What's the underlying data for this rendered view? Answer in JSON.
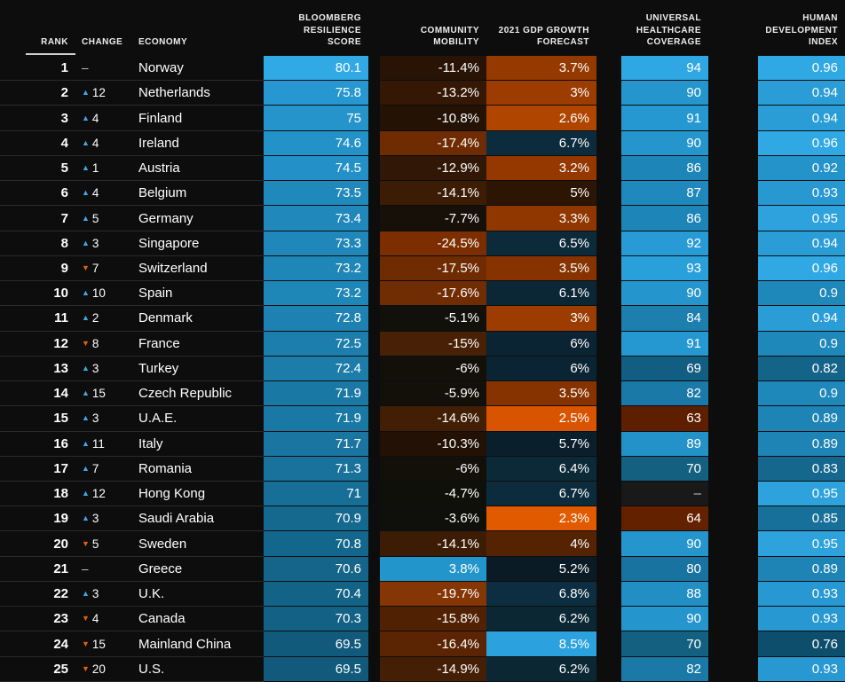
{
  "colors": {
    "background": "#0d0d0d",
    "text": "#ffffff",
    "muted": "#c9c9c9",
    "up": "#3fa9e4",
    "down": "#e2600e",
    "separator": "#2a2a2a",
    "rank_rule": "#cfcfcf",
    "header_text": "#ededed"
  },
  "header": {
    "rank": "RANK",
    "change": "CHANGE",
    "economy": "ECONOMY",
    "score": "BLOOMBERG\nRESILIENCE\nSCORE",
    "mobility": "COMMUNITY\nMOBILITY",
    "gdp": "2021 GDP GROWTH\nFORECAST",
    "healthcare": "UNIVERSAL\nHEALTHCARE\nCOVERAGE",
    "hdi": "HUMAN\nDEVELOPMENT\nINDEX"
  },
  "chart_data": {
    "type": "table",
    "columns": [
      "Rank",
      "Change",
      "Economy",
      "Bloomberg Resilience Score",
      "Community Mobility",
      "2021 GDP Growth Forecast",
      "Universal Healthcare Coverage",
      "Human Development Index"
    ],
    "rows": [
      {
        "rank": "1",
        "change_dir": "same",
        "change": "–",
        "economy": "Norway",
        "score": "80.1",
        "mobility": "-11.4%",
        "gdp": "3.7%",
        "healthcare": "94",
        "hdi": "0.96",
        "bg": {
          "score": "#31a9e5",
          "mobility": "#281305",
          "gdp": "#943900",
          "healthcare": "#2fa7e3",
          "hdi": "#30a8e4"
        }
      },
      {
        "rank": "2",
        "change_dir": "up",
        "change": "12",
        "economy": "Netherlands",
        "score": "75.8",
        "mobility": "-13.2%",
        "gdp": "3%",
        "healthcare": "90",
        "hdi": "0.94",
        "bg": {
          "score": "#2697d0",
          "mobility": "#341805",
          "gdp": "#9c3c00",
          "healthcare": "#2495cd",
          "hdi": "#2a9dd7"
        }
      },
      {
        "rank": "3",
        "change_dir": "up",
        "change": "4",
        "economy": "Finland",
        "score": "75",
        "mobility": "-10.8%",
        "gdp": "2.6%",
        "healthcare": "91",
        "hdi": "0.94",
        "bg": {
          "score": "#2494cb",
          "mobility": "#241204",
          "gdp": "#b04500",
          "healthcare": "#2698d1",
          "hdi": "#2a9dd7"
        }
      },
      {
        "rank": "4",
        "change_dir": "up",
        "change": "4",
        "economy": "Ireland",
        "score": "74.6",
        "mobility": "-17.4%",
        "gdp": "6.7%",
        "healthcare": "90",
        "hdi": "0.96",
        "bg": {
          "score": "#2392c8",
          "mobility": "#6f2c03",
          "gdp": "#0c2c3d",
          "healthcare": "#2495cd",
          "hdi": "#30a8e4"
        }
      },
      {
        "rank": "5",
        "change_dir": "up",
        "change": "1",
        "economy": "Austria",
        "score": "74.5",
        "mobility": "-12.9%",
        "gdp": "3.2%",
        "healthcare": "86",
        "hdi": "0.92",
        "bg": {
          "score": "#2391c7",
          "mobility": "#311705",
          "gdp": "#943800",
          "healthcare": "#1e85b8",
          "hdi": "#2493ca"
        }
      },
      {
        "rank": "6",
        "change_dir": "up",
        "change": "4",
        "economy": "Belgium",
        "score": "73.5",
        "mobility": "-14.1%",
        "gdp": "5%",
        "healthcare": "87",
        "hdi": "0.93",
        "bg": {
          "score": "#2089bc",
          "mobility": "#3d1c05",
          "gdp": "#2d1503",
          "healthcare": "#1f88bc",
          "hdi": "#2798d1"
        }
      },
      {
        "rank": "7",
        "change_dir": "up",
        "change": "5",
        "economy": "Germany",
        "score": "73.4",
        "mobility": "-7.7%",
        "gdp": "3.3%",
        "healthcare": "86",
        "hdi": "0.95",
        "bg": {
          "score": "#2088bb",
          "mobility": "#171008",
          "gdp": "#903700",
          "healthcare": "#1e85b8",
          "hdi": "#2da2dd"
        }
      },
      {
        "rank": "8",
        "change_dir": "up",
        "change": "3",
        "economy": "Singapore",
        "score": "73.3",
        "mobility": "-24.5%",
        "gdp": "6.5%",
        "healthcare": "92",
        "hdi": "0.94",
        "bg": {
          "score": "#1f87b9",
          "mobility": "#7c2e00",
          "gdp": "#0c2a3a",
          "healthcare": "#289bd6",
          "hdi": "#2a9dd7"
        }
      },
      {
        "rank": "9",
        "change_dir": "down",
        "change": "7",
        "economy": "Switzerland",
        "score": "73.2",
        "mobility": "-17.5%",
        "gdp": "3.5%",
        "healthcare": "93",
        "hdi": "0.96",
        "bg": {
          "score": "#1f86b8",
          "mobility": "#6f2c03",
          "gdp": "#873300",
          "healthcare": "#2aa0db",
          "hdi": "#30a8e4"
        }
      },
      {
        "rank": "10",
        "change_dir": "up",
        "change": "10",
        "economy": "Spain",
        "score": "73.2",
        "mobility": "-17.6%",
        "gdp": "6.1%",
        "healthcare": "90",
        "hdi": "0.9",
        "bg": {
          "score": "#1f86b8",
          "mobility": "#702c03",
          "gdp": "#0b2635",
          "healthcare": "#2495cd",
          "hdi": "#1f88bb"
        }
      },
      {
        "rank": "11",
        "change_dir": "up",
        "change": "2",
        "economy": "Denmark",
        "score": "72.8",
        "mobility": "-5.1%",
        "gdp": "3%",
        "healthcare": "84",
        "hdi": "0.94",
        "bg": {
          "score": "#1d81b1",
          "mobility": "#11100a",
          "gdp": "#9c3c00",
          "healthcare": "#1c7fae",
          "hdi": "#2a9dd7"
        }
      },
      {
        "rank": "12",
        "change_dir": "down",
        "change": "8",
        "economy": "France",
        "score": "72.5",
        "mobility": "-15%",
        "gdp": "6%",
        "healthcare": "91",
        "hdi": "0.9",
        "bg": {
          "score": "#1c7eac",
          "mobility": "#482005",
          "gdp": "#0b2433",
          "healthcare": "#2698d1",
          "hdi": "#1f88bb"
        }
      },
      {
        "rank": "13",
        "change_dir": "up",
        "change": "3",
        "economy": "Turkey",
        "score": "72.4",
        "mobility": "-6%",
        "gdp": "6%",
        "healthcare": "69",
        "hdi": "0.82",
        "bg": {
          "score": "#1c7dab",
          "mobility": "#131009",
          "gdp": "#0b2433",
          "healthcare": "#125e83",
          "hdi": "#146389"
        }
      },
      {
        "rank": "14",
        "change_dir": "up",
        "change": "15",
        "economy": "Czech Republic",
        "score": "71.9",
        "mobility": "-5.9%",
        "gdp": "3.5%",
        "healthcare": "82",
        "hdi": "0.9",
        "bg": {
          "score": "#1a78a4",
          "mobility": "#131009",
          "gdp": "#873300",
          "healthcare": "#1a79a7",
          "hdi": "#1f88bb"
        }
      },
      {
        "rank": "15",
        "change_dir": "up",
        "change": "3",
        "economy": "U.A.E.",
        "score": "71.9",
        "mobility": "-14.6%",
        "gdp": "2.5%",
        "healthcare": "63",
        "hdi": "0.89",
        "bg": {
          "score": "#1a78a4",
          "mobility": "#421e05",
          "gdp": "#d85400",
          "healthcare": "#5e1f00",
          "hdi": "#1d84b5"
        }
      },
      {
        "rank": "16",
        "change_dir": "up",
        "change": "11",
        "economy": "Italy",
        "score": "71.7",
        "mobility": "-10.3%",
        "gdp": "5.7%",
        "healthcare": "89",
        "hdi": "0.89",
        "bg": {
          "score": "#1a76a1",
          "mobility": "#221104",
          "gdp": "#0a1f2c",
          "healthcare": "#2392c8",
          "hdi": "#1d84b5"
        }
      },
      {
        "rank": "17",
        "change_dir": "up",
        "change": "7",
        "economy": "Romania",
        "score": "71.3",
        "mobility": "-6%",
        "gdp": "6.4%",
        "healthcare": "70",
        "hdi": "0.83",
        "bg": {
          "score": "#18729b",
          "mobility": "#131009",
          "gdp": "#0c2938",
          "healthcare": "#136080",
          "hdi": "#15678d"
        }
      },
      {
        "rank": "18",
        "change_dir": "up",
        "change": "12",
        "economy": "Hong Kong",
        "score": "71",
        "mobility": "-4.7%",
        "gdp": "6.7%",
        "healthcare": "–",
        "hdi": "0.95",
        "bg": {
          "score": "#176f97",
          "mobility": "#10100b",
          "gdp": "#0c2c3d",
          "healthcare": "#191919",
          "hdi": "#2da2dd"
        }
      },
      {
        "rank": "19",
        "change_dir": "up",
        "change": "3",
        "economy": "Saudi Arabia",
        "score": "70.9",
        "mobility": "-3.6%",
        "gdp": "2.3%",
        "healthcare": "64",
        "hdi": "0.85",
        "bg": {
          "score": "#15688e",
          "mobility": "#0f100c",
          "gdp": "#e25a00",
          "healthcare": "#642100",
          "hdi": "#17709a"
        }
      },
      {
        "rank": "20",
        "change_dir": "down",
        "change": "5",
        "economy": "Sweden",
        "score": "70.8",
        "mobility": "-14.1%",
        "gdp": "4%",
        "healthcare": "90",
        "hdi": "0.95",
        "bg": {
          "score": "#14678c",
          "mobility": "#3d1c05",
          "gdp": "#552202",
          "healthcare": "#2495cd",
          "hdi": "#2da2dd"
        }
      },
      {
        "rank": "21",
        "change_dir": "same",
        "change": "–",
        "economy": "Greece",
        "score": "70.6",
        "mobility": "3.8%",
        "gdp": "5.2%",
        "healthcare": "80",
        "hdi": "0.89",
        "bg": {
          "score": "#146589",
          "mobility": "#2295cb",
          "gdp": "#0a1b26",
          "healthcare": "#1873a0",
          "hdi": "#1d84b5"
        }
      },
      {
        "rank": "22",
        "change_dir": "up",
        "change": "3",
        "economy": "U.K.",
        "score": "70.4",
        "mobility": "-19.7%",
        "gdp": "6.8%",
        "healthcare": "88",
        "hdi": "0.93",
        "bg": {
          "score": "#136386",
          "mobility": "#853605",
          "gdp": "#0d2e40",
          "healthcare": "#218fc4",
          "hdi": "#2798d1"
        }
      },
      {
        "rank": "23",
        "change_dir": "down",
        "change": "4",
        "economy": "Canada",
        "score": "70.3",
        "mobility": "-15.8%",
        "gdp": "6.2%",
        "healthcare": "90",
        "hdi": "0.93",
        "bg": {
          "score": "#136285",
          "mobility": "#512103",
          "gdp": "#0b2734",
          "healthcare": "#2495cd",
          "hdi": "#2798d1"
        }
      },
      {
        "rank": "24",
        "change_dir": "down",
        "change": "15",
        "economy": "Mainland China",
        "score": "69.5",
        "mobility": "-16.4%",
        "gdp": "8.5%",
        "healthcare": "70",
        "hdi": "0.76",
        "bg": {
          "score": "#115a7c",
          "mobility": "#5b2503",
          "gdp": "#2ba2de",
          "healthcare": "#136080",
          "hdi": "#0e4e6d"
        }
      },
      {
        "rank": "25",
        "change_dir": "down",
        "change": "20",
        "economy": "U.S.",
        "score": "69.5",
        "mobility": "-14.9%",
        "gdp": "6.2%",
        "healthcare": "82",
        "hdi": "0.93",
        "bg": {
          "score": "#115a7c",
          "mobility": "#451f05",
          "gdp": "#0b2734",
          "healthcare": "#1a79a7",
          "hdi": "#2798d1"
        }
      }
    ]
  }
}
